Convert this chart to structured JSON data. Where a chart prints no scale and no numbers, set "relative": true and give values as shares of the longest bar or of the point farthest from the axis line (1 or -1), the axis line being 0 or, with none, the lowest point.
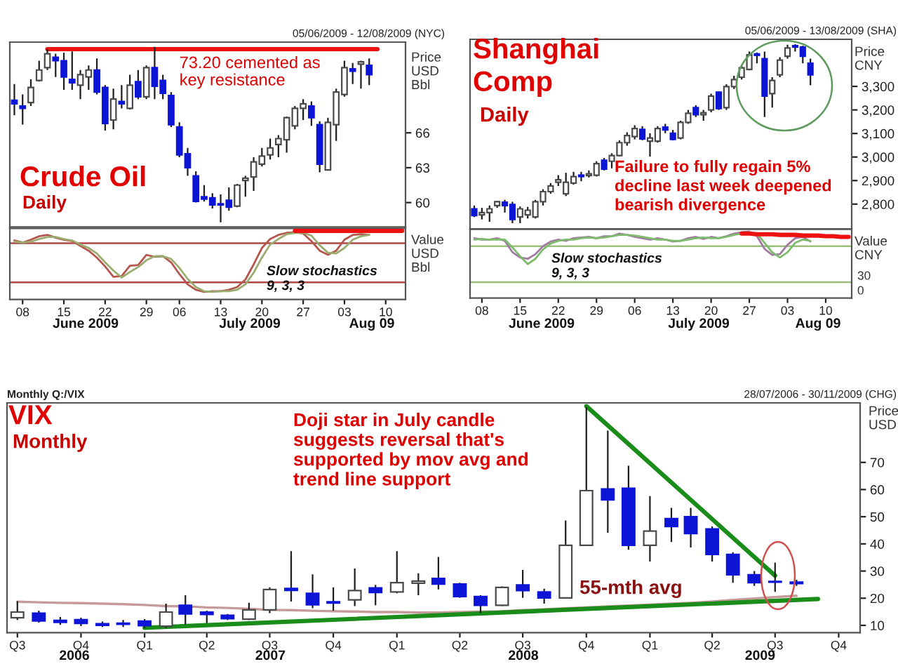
{
  "chart_data": [
    {
      "type": "candlestick",
      "title": "Crude Oil",
      "subtitle": "Daily",
      "ylabel": "Price\nUSD\nBbl",
      "categories": [
        null,
        "08",
        null,
        null,
        null,
        null,
        "15",
        null,
        null,
        null,
        null,
        "22",
        null,
        null,
        null,
        null,
        "29",
        null,
        null,
        null,
        "06",
        null,
        null,
        null,
        null,
        "13",
        null,
        null,
        null,
        null,
        "20",
        null,
        null,
        null,
        null,
        "27",
        null,
        null,
        null,
        null,
        "03",
        null,
        null,
        null,
        null,
        "10",
        null,
        null
      ],
      "ohlc": [
        [
          68.8,
          70.2,
          67.5,
          68.5
        ],
        [
          68.3,
          69.3,
          66.7,
          68.1
        ],
        [
          68.6,
          70.6,
          68.3,
          69.9
        ],
        [
          70.5,
          72.2,
          70.4,
          71.4
        ],
        [
          71.6,
          73.2,
          71.4,
          72.8
        ],
        [
          72.5,
          72.8,
          70.8,
          72.2
        ],
        [
          72.2,
          72.9,
          69.7,
          70.8
        ],
        [
          70.6,
          73.0,
          69.7,
          70.3
        ],
        [
          70.1,
          71.4,
          68.9,
          71.0
        ],
        [
          70.8,
          71.8,
          69.7,
          71.4
        ],
        [
          71.4,
          72.4,
          69.3,
          69.5
        ],
        [
          69.9,
          70.1,
          66.2,
          66.8
        ],
        [
          67.1,
          69.8,
          66.3,
          68.9
        ],
        [
          68.7,
          70.1,
          68.1,
          68.5
        ],
        [
          68.1,
          71.0,
          68.0,
          70.1
        ],
        [
          70.4,
          71.4,
          68.9,
          69.1
        ],
        [
          69.1,
          71.8,
          68.9,
          71.6
        ],
        [
          71.6,
          73.4,
          68.9,
          70.0
        ],
        [
          70.5,
          71.0,
          68.9,
          69.4
        ],
        [
          69.2,
          69.5,
          66.5,
          66.7
        ],
        [
          66.5,
          66.9,
          63.9,
          64.1
        ],
        [
          64.2,
          64.7,
          62.3,
          63.0
        ],
        [
          62.3,
          62.7,
          60.0,
          60.1
        ],
        [
          60.5,
          61.5,
          60.1,
          60.3
        ],
        [
          60.4,
          60.8,
          59.5,
          59.8
        ],
        [
          59.9,
          60.7,
          58.3,
          59.8
        ],
        [
          60.2,
          61.3,
          59.3,
          59.6
        ],
        [
          59.7,
          61.6,
          59.6,
          61.5
        ],
        [
          61.9,
          62.3,
          60.5,
          62.1
        ],
        [
          62.2,
          63.9,
          61.0,
          63.5
        ],
        [
          63.3,
          64.7,
          63.1,
          64.0
        ],
        [
          64.1,
          65.5,
          63.7,
          64.7
        ],
        [
          65.0,
          65.8,
          63.9,
          65.5
        ],
        [
          65.4,
          67.4,
          64.3,
          67.3
        ],
        [
          66.6,
          68.3,
          66.3,
          68.1
        ],
        [
          68.1,
          68.9,
          67.1,
          68.5
        ],
        [
          68.3,
          68.7,
          66.6,
          67.3
        ],
        [
          66.7,
          67.0,
          62.6,
          63.3
        ],
        [
          62.8,
          67.3,
          62.8,
          66.9
        ],
        [
          66.7,
          69.8,
          65.3,
          69.5
        ],
        [
          69.3,
          72.2,
          69.1,
          71.6
        ],
        [
          71.5,
          72.0,
          70.2,
          71.3
        ],
        [
          71.9,
          72.2,
          69.8,
          72.1
        ],
        [
          71.8,
          72.4,
          70.1,
          71.0
        ],
        null,
        null,
        null,
        null
      ],
      "series": [
        {
          "type": "line",
          "color": "#ee1111",
          "values": [
            null,
            null,
            null,
            null,
            73.2,
            73.2,
            73.2,
            73.2,
            73.2,
            73.2,
            73.2,
            73.2,
            73.2,
            73.2,
            73.2,
            73.2,
            73.2,
            73.2,
            73.2,
            73.2,
            73.2,
            73.2,
            73.2,
            73.2,
            73.2,
            73.2,
            73.2,
            73.2,
            73.2,
            73.2,
            73.2,
            73.2,
            73.2,
            73.2,
            73.2,
            73.2,
            73.2,
            73.2,
            73.2,
            73.2,
            73.2,
            73.2,
            73.2,
            73.2,
            73.2,
            null,
            null,
            null
          ]
        }
      ],
      "ylim": [
        57.9,
        73.8
      ],
      "yticks": [
        60,
        63,
        66
      ],
      "tick_labels": "y",
      "annotations": [
        "05/06/2009 - 12/08/2009 (NYC)",
        {
          "text": "73.20 cemented as\nkey resistance",
          "x": "06",
          "y": 72.6
        }
      ]
    },
    {
      "type": "line",
      "relative": true,
      "ylabel": "Value\nUSD\nBbl",
      "categories": [
        null,
        "08",
        null,
        null,
        null,
        null,
        "15",
        null,
        null,
        null,
        null,
        "22",
        null,
        null,
        null,
        null,
        "29",
        null,
        null,
        null,
        "06",
        null,
        null,
        null,
        null,
        "13",
        null,
        null,
        null,
        null,
        "20",
        null,
        null,
        null,
        null,
        "27",
        null,
        null,
        null,
        null,
        "03",
        null,
        null,
        null,
        null,
        "10",
        null,
        null
      ],
      "series": [
        {
          "color": "#b4564e",
          "values": [
            0.86,
            0.83,
            0.87,
            0.92,
            0.94,
            0.9,
            0.87,
            0.85,
            0.78,
            0.71,
            0.61,
            0.48,
            0.33,
            0.34,
            0.49,
            0.5,
            0.65,
            0.62,
            0.63,
            0.54,
            0.37,
            0.22,
            0.14,
            0.11,
            0.12,
            0.12,
            0.14,
            0.18,
            0.29,
            0.51,
            0.75,
            0.88,
            0.94,
            0.97,
            0.98,
            0.96,
            0.85,
            0.71,
            0.65,
            0.71,
            0.87,
            0.94,
            0.95,
            0.94,
            null,
            null,
            null,
            null
          ]
        },
        {
          "color": "#9aad6e",
          "values": [
            0.84,
            0.83,
            0.84,
            0.88,
            0.91,
            0.91,
            0.88,
            0.86,
            0.8,
            0.75,
            0.67,
            0.54,
            0.42,
            0.32,
            0.4,
            0.47,
            0.57,
            0.63,
            0.63,
            0.59,
            0.46,
            0.3,
            0.18,
            0.12,
            0.11,
            0.12,
            0.12,
            0.14,
            0.22,
            0.39,
            0.61,
            0.8,
            0.88,
            0.95,
            0.97,
            0.97,
            0.93,
            0.79,
            0.68,
            0.67,
            0.75,
            0.87,
            0.92,
            0.94,
            null,
            null,
            null,
            null
          ]
        },
        {
          "color": "#ee1111",
          "values": [
            null,
            null,
            null,
            null,
            null,
            null,
            null,
            null,
            null,
            null,
            null,
            null,
            null,
            null,
            null,
            null,
            null,
            null,
            null,
            null,
            null,
            null,
            null,
            null,
            null,
            null,
            null,
            null,
            null,
            null,
            null,
            null,
            null,
            null,
            1.0,
            1.0,
            1.0,
            1.0,
            1.0,
            1.0,
            1.0,
            1.0,
            1.0,
            1.0,
            1.0,
            1.0,
            1.0,
            1.0
          ]
        }
      ],
      "ref_lines": [
        {
          "axis": "y",
          "value": 0.82,
          "color": "#b04848"
        },
        {
          "axis": "y",
          "value": 0.25,
          "color": "#b04848"
        }
      ],
      "tick_labels": "x",
      "annotations": [
        "Slow stochastics\n9, 3, 3",
        "June 2009",
        "July 2009",
        "Aug 09"
      ]
    },
    {
      "type": "candlestick",
      "title": "Shanghai\nComp",
      "subtitle": "Daily",
      "ylabel": "Price\nCNY",
      "categories": [
        null,
        "08",
        null,
        null,
        null,
        null,
        "15",
        null,
        null,
        null,
        null,
        "22",
        null,
        null,
        null,
        null,
        "29",
        null,
        null,
        null,
        null,
        "06",
        null,
        null,
        null,
        null,
        "13",
        null,
        null,
        null,
        null,
        "20",
        null,
        null,
        null,
        null,
        "27",
        null,
        null,
        null,
        null,
        "03",
        null,
        null,
        null,
        null,
        "10",
        null,
        null,
        null
      ],
      "ohlc": [
        [
          2780,
          2794,
          2745,
          2751
        ],
        [
          2754,
          2784,
          2735,
          2764
        ],
        [
          2764,
          2794,
          2725,
          2780
        ],
        [
          2794,
          2814,
          2784,
          2810
        ],
        [
          2808,
          2818,
          2764,
          2794
        ],
        [
          2798,
          2810,
          2719,
          2735
        ],
        [
          2745,
          2790,
          2719,
          2780
        ],
        [
          2754,
          2788,
          2739,
          2774
        ],
        [
          2745,
          2818,
          2739,
          2810
        ],
        [
          2810,
          2863,
          2794,
          2853
        ],
        [
          2853,
          2889,
          2844,
          2877
        ],
        [
          2893,
          2923,
          2877,
          2903
        ],
        [
          2844,
          2933,
          2834,
          2893
        ],
        [
          2889,
          2937,
          2883,
          2917
        ],
        [
          2923,
          2937,
          2897,
          2917
        ],
        [
          2921,
          2943,
          2913,
          2929
        ],
        [
          2923,
          2982,
          2917,
          2972
        ],
        [
          2986,
          2996,
          2943,
          2949
        ],
        [
          2982,
          3016,
          2952,
          3006
        ],
        [
          3006,
          3071,
          3002,
          3061
        ],
        [
          3061,
          3105,
          3048,
          3091
        ],
        [
          3087,
          3135,
          3075,
          3121
        ],
        [
          3117,
          3131,
          3071,
          3077
        ],
        [
          3067,
          3101,
          3002,
          3081
        ],
        [
          3067,
          3131,
          3061,
          3121
        ],
        [
          3127,
          3141,
          3101,
          3115
        ],
        [
          3101,
          3115,
          3071,
          3075
        ],
        [
          3081,
          3154,
          3075,
          3147
        ],
        [
          3147,
          3200,
          3141,
          3186
        ],
        [
          3210,
          3220,
          3170,
          3180
        ],
        [
          3180,
          3200,
          3154,
          3188
        ],
        [
          3200,
          3269,
          3190,
          3259
        ],
        [
          3275,
          3279,
          3200,
          3206
        ],
        [
          3210,
          3309,
          3200,
          3299
        ],
        [
          3299,
          3345,
          3289,
          3329
        ],
        [
          3339,
          3388,
          3329,
          3379
        ],
        [
          3372,
          3448,
          3368,
          3434
        ],
        [
          3438,
          3444,
          3398,
          3432
        ],
        [
          3418,
          3448,
          3170,
          3259
        ],
        [
          3269,
          3339,
          3210,
          3325
        ],
        [
          3349,
          3424,
          3339,
          3412
        ],
        [
          3428,
          3477,
          3418,
          3463
        ],
        [
          3473,
          3479,
          3448,
          3467
        ],
        [
          3467,
          3473,
          3398,
          3428
        ],
        [
          3398,
          3418,
          3305,
          3349
        ],
        null,
        null,
        null,
        null,
        null
      ],
      "ylim": [
        2695,
        3500
      ],
      "yticks": [
        {
          "value": 2800,
          "label": "2,800"
        },
        {
          "value": 2900,
          "label": "2,900"
        },
        {
          "value": 3000,
          "label": "3,000"
        },
        {
          "value": 3100,
          "label": "3,100"
        },
        {
          "value": 3200,
          "label": "3,200"
        },
        {
          "value": 3300,
          "label": "3,300"
        }
      ],
      "tick_labels": "y",
      "annotations": [
        "05/06/2009 - 13/08/2009 (SHA)",
        "Failure to fully regain 5%\ndecline last week deepened\nbearish divergence"
      ]
    },
    {
      "type": "line",
      "relative": true,
      "ylabel": "Value\nCNY",
      "categories": [
        null,
        "08",
        null,
        null,
        null,
        null,
        "15",
        null,
        null,
        null,
        null,
        "22",
        null,
        null,
        null,
        null,
        "29",
        null,
        null,
        null,
        null,
        "06",
        null,
        null,
        null,
        null,
        "13",
        null,
        null,
        null,
        null,
        "20",
        null,
        null,
        null,
        null,
        "27",
        null,
        null,
        null,
        null,
        "03",
        null,
        null,
        null,
        null,
        "10",
        null,
        null,
        null
      ],
      "series": [
        {
          "color": "#a07aa0",
          "values": [
            0.9,
            0.88,
            0.88,
            0.9,
            0.86,
            0.69,
            0.61,
            0.59,
            0.66,
            0.78,
            0.85,
            0.88,
            0.86,
            0.9,
            0.91,
            0.92,
            0.9,
            0.93,
            0.93,
            0.97,
            0.95,
            0.92,
            0.9,
            0.88,
            0.9,
            0.88,
            0.85,
            0.86,
            0.9,
            0.92,
            0.89,
            0.92,
            0.9,
            0.93,
            0.97,
            0.99,
            1.0,
            0.93,
            0.74,
            0.65,
            0.66,
            0.8,
            0.9,
            0.92,
            0.85,
            null,
            null,
            null,
            null,
            null
          ]
        },
        {
          "color": "#7dbb6d",
          "values": [
            0.88,
            0.89,
            0.88,
            0.88,
            0.88,
            0.76,
            0.63,
            0.51,
            0.59,
            0.73,
            0.82,
            0.86,
            0.88,
            0.88,
            0.9,
            0.91,
            0.9,
            0.91,
            0.93,
            0.95,
            0.95,
            0.94,
            0.92,
            0.9,
            0.88,
            0.88,
            0.86,
            0.86,
            0.88,
            0.9,
            0.91,
            0.9,
            0.9,
            0.92,
            0.95,
            0.97,
            0.99,
            0.97,
            0.83,
            0.69,
            0.61,
            0.69,
            0.83,
            0.88,
            0.86,
            null,
            null,
            null,
            null,
            null
          ]
        },
        {
          "color": "#ee1111",
          "values": [
            null,
            null,
            null,
            null,
            null,
            null,
            null,
            null,
            null,
            null,
            null,
            null,
            null,
            null,
            null,
            null,
            null,
            null,
            null,
            null,
            null,
            null,
            null,
            null,
            null,
            null,
            null,
            null,
            null,
            null,
            null,
            null,
            null,
            null,
            null,
            0.97,
            0.97,
            0.96,
            0.96,
            0.96,
            0.95,
            0.95,
            0.95,
            0.94,
            0.94,
            0.94,
            0.93,
            0.93,
            0.92,
            0.92
          ]
        }
      ],
      "ref_lines": [
        {
          "axis": "y",
          "value": 0.78,
          "color": "#9cbf7c"
        },
        {
          "axis": "y",
          "value": 0.24,
          "color": "#9cbf7c"
        }
      ],
      "tick_labels": "x",
      "annotations": [
        "Slow stochastics\n9, 3, 3",
        "30",
        "0",
        "June 2009",
        "July 2009",
        "Aug 09"
      ]
    },
    {
      "type": "candlestick",
      "title": "VIX",
      "subtitle": "Monthly",
      "ylabel": "Price\nUSD",
      "x": [
        "2006-07",
        "2006-08",
        "2006-09",
        "2006-10",
        "2006-11",
        "2006-12",
        "2007-01",
        "2007-02",
        "2007-03",
        "2007-04",
        "2007-05",
        "2007-06",
        "2007-07",
        "2007-08",
        "2007-09",
        "2007-10",
        "2007-11",
        "2007-12",
        "2008-01",
        "2008-02",
        "2008-03",
        "2008-04",
        "2008-05",
        "2008-06",
        "2008-07",
        "2008-08",
        "2008-09",
        "2008-10",
        "2008-11",
        "2008-12",
        "2009-01",
        "2009-02",
        "2009-03",
        "2009-04",
        "2009-05",
        "2009-06",
        "2009-07",
        "2009-08"
      ],
      "ohlc": [
        [
          12.8,
          18.9,
          12.0,
          14.9
        ],
        [
          14.5,
          15.4,
          11.0,
          11.6
        ],
        [
          11.8,
          13.1,
          10.2,
          11.1
        ],
        [
          12.1,
          12.8,
          9.7,
          10.7
        ],
        [
          10.6,
          11.4,
          9.4,
          10.0
        ],
        [
          10.8,
          12.0,
          9.4,
          10.4
        ],
        [
          11.6,
          12.3,
          9.0,
          9.9
        ],
        [
          9.7,
          18.0,
          9.0,
          14.9
        ],
        [
          17.4,
          21.1,
          10.3,
          14.2
        ],
        [
          14.9,
          15.4,
          10.8,
          14.0
        ],
        [
          13.7,
          14.2,
          12.0,
          12.5
        ],
        [
          12.3,
          18.3,
          12.0,
          15.7
        ],
        [
          15.7,
          24.0,
          14.5,
          23.2
        ],
        [
          23.6,
          37.3,
          18.8,
          22.9
        ],
        [
          21.8,
          28.8,
          16.3,
          17.6
        ],
        [
          18.7,
          24.0,
          15.4,
          18.2
        ],
        [
          19.4,
          30.9,
          17.1,
          22.8
        ],
        [
          23.8,
          24.9,
          17.4,
          22.1
        ],
        [
          22.3,
          37.3,
          21.8,
          25.7
        ],
        [
          25.5,
          29.2,
          21.1,
          26.3
        ],
        [
          27.3,
          35.2,
          23.2,
          25.2
        ],
        [
          25.2,
          25.7,
          20.1,
          20.6
        ],
        [
          20.6,
          21.1,
          14.5,
          17.4
        ],
        [
          17.4,
          24.3,
          17.1,
          24.0
        ],
        [
          24.9,
          30.4,
          20.1,
          22.8
        ],
        [
          22.3,
          23.5,
          18.0,
          20.1
        ],
        [
          20.1,
          48.6,
          20.1,
          39.5
        ],
        [
          39.5,
          90.3,
          39.5,
          59.6
        ],
        [
          60.2,
          81.7,
          44.1,
          56.2
        ],
        [
          60.5,
          68.8,
          37.8,
          39.5
        ],
        [
          39.5,
          57.6,
          33.5,
          44.7
        ],
        [
          49.3,
          53.3,
          40.7,
          46.4
        ],
        [
          50.0,
          53.3,
          38.7,
          43.8
        ],
        [
          45.5,
          46.4,
          33.5,
          36.1
        ],
        [
          36.1,
          36.9,
          25.7,
          28.6
        ],
        [
          28.6,
          30.0,
          24.5,
          25.7
        ],
        [
          26.2,
          33.1,
          22.3,
          25.9
        ],
        [
          25.9,
          26.8,
          24.5,
          25.4
        ]
      ],
      "series": [
        {
          "type": "line",
          "name": "55-mth avg",
          "color": "#c79a9a",
          "values": [
            18.7,
            18.5,
            18.3,
            18.2,
            18.0,
            17.8,
            17.5,
            17.1,
            17.0,
            16.6,
            16.4,
            16.1,
            15.7,
            15.6,
            15.4,
            15.2,
            15.1,
            14.9,
            14.9,
            14.7,
            14.7,
            14.9,
            15.1,
            15.2,
            15.6,
            15.9,
            16.3,
            16.6,
            17.0,
            17.3,
            17.6,
            18.0,
            18.3,
            18.8,
            19.4,
            19.9,
            20.4,
            20.9
          ]
        },
        {
          "type": "line",
          "color": "#1a8c1a",
          "x": [
            "2007-01",
            "2009-09"
          ],
          "values": [
            9.1,
            19.7
          ]
        },
        {
          "type": "line",
          "color": "#1a8c1a",
          "x": [
            "2008-10",
            "2009-07"
          ],
          "values": [
            90.7,
            28.3
          ]
        }
      ],
      "xlim": [
        "2006-06-16",
        "2009-11-01"
      ],
      "xticks": [
        {
          "value": "2006-07",
          "label": "Q3"
        },
        {
          "value": "2006-10",
          "label": "Q4"
        },
        {
          "value": "2007-01",
          "label": "Q1"
        },
        {
          "value": "2007-04",
          "label": "Q2"
        },
        {
          "value": "2007-07",
          "label": "Q3"
        },
        {
          "value": "2007-10",
          "label": "Q4"
        },
        {
          "value": "2008-01",
          "label": "Q1"
        },
        {
          "value": "2008-04",
          "label": "Q2"
        },
        {
          "value": "2008-07",
          "label": "Q3"
        },
        {
          "value": "2008-10",
          "label": "Q4"
        },
        {
          "value": "2009-01",
          "label": "Q1"
        },
        {
          "value": "2009-04",
          "label": "Q2"
        },
        {
          "value": "2009-07",
          "label": "Q3"
        },
        {
          "value": "2009-10",
          "label": "Q4"
        }
      ],
      "ylim": [
        7.3,
        91.9
      ],
      "yticks": [
        10,
        20,
        30,
        40,
        50,
        60,
        70
      ],
      "annotations": [
        "28/07/2006 - 30/11/2009 (CHG)",
        "Monthly Q:/VIX",
        "Doji star in July candle\nsuggests reversal that's\nsupported by mov avg and\ntrend line support",
        "2006",
        "2007",
        "2008",
        "2009"
      ]
    }
  ]
}
